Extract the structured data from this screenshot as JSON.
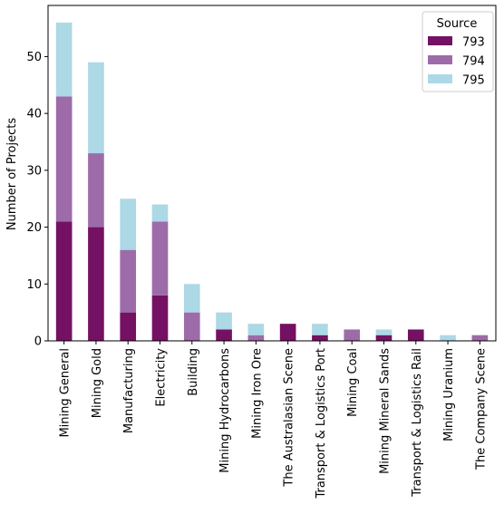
{
  "chart_data": {
    "type": "bar",
    "stacked": true,
    "title": "",
    "xlabel": "",
    "ylabel": "Number of Projects",
    "ylim": [
      0,
      59
    ],
    "yticks": [
      0,
      10,
      20,
      30,
      40,
      50
    ],
    "grid": false,
    "categories": [
      "Mining General",
      "Mining Gold",
      "Manufacturing",
      "Electricity",
      "Building",
      "Mining Hydrocarbons",
      "Mining Iron Ore",
      "The Australasian Scene",
      "Transport & Logistics Port",
      "Mining Coal",
      "Mining Mineral Sands",
      "Transport & Logistics Rail",
      "Mining Uranium",
      "The Company Scene"
    ],
    "series": [
      {
        "name": "793",
        "color": "#741162",
        "values": [
          21,
          20,
          5,
          8,
          0,
          2,
          0,
          3,
          1,
          0,
          1,
          2,
          0,
          0
        ]
      },
      {
        "name": "794",
        "color": "#9d6ca8",
        "values": [
          22,
          13,
          11,
          13,
          5,
          0,
          1,
          0,
          0,
          2,
          0,
          0,
          0,
          1
        ]
      },
      {
        "name": "795",
        "color": "#add8e6",
        "values": [
          13,
          16,
          9,
          3,
          5,
          3,
          2,
          0,
          2,
          0,
          1,
          0,
          1,
          0
        ]
      }
    ],
    "legend": {
      "title": "Source",
      "position": "top-right"
    }
  }
}
